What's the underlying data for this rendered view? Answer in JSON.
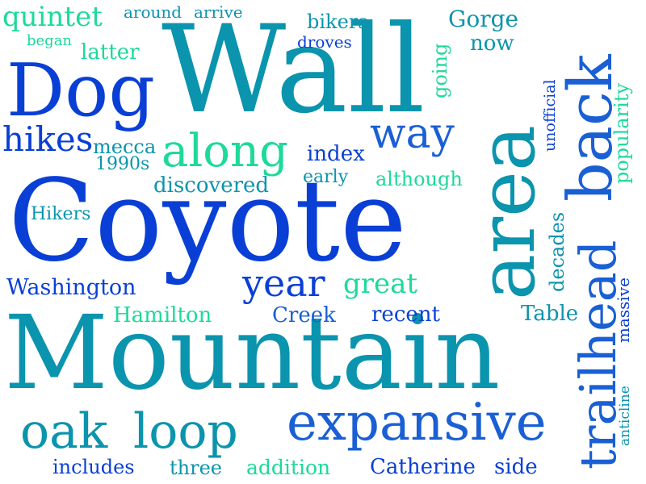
{
  "words": [
    {
      "id": "coyote",
      "text": "Coyote",
      "color": "#0a3fd6"
    },
    {
      "id": "mountain",
      "text": "Mountain",
      "color": "#0b94ad"
    },
    {
      "id": "wall",
      "text": "Wall",
      "color": "#0b94ad"
    },
    {
      "id": "area",
      "text": "area",
      "color": "#0b94ad"
    },
    {
      "id": "dog",
      "text": "Dog",
      "color": "#0a3fd6"
    },
    {
      "id": "back",
      "text": "back",
      "color": "#1a5fd4"
    },
    {
      "id": "trailhead",
      "text": "trailhead",
      "color": "#1a5fd4"
    },
    {
      "id": "expansive",
      "text": "expansive",
      "color": "#1a5fd4"
    },
    {
      "id": "oak",
      "text": "oak",
      "color": "#0b94ad"
    },
    {
      "id": "loop",
      "text": "loop",
      "color": "#0b94ad"
    },
    {
      "id": "along",
      "text": "along",
      "color": "#1ed99a"
    },
    {
      "id": "way",
      "text": "way",
      "color": "#1a5fd4"
    },
    {
      "id": "year",
      "text": "year",
      "color": "#0a3fd6"
    },
    {
      "id": "great",
      "text": "great",
      "color": "#1ed99a"
    },
    {
      "id": "hikes",
      "text": "hikes",
      "color": "#0a3fd6"
    },
    {
      "id": "quintet",
      "text": "quintet",
      "color": "#1ed99a"
    },
    {
      "id": "around",
      "text": "around",
      "color": "#0b94ad"
    },
    {
      "id": "arrive",
      "text": "arrive",
      "color": "#0b94ad"
    },
    {
      "id": "bikers",
      "text": "bikers",
      "color": "#0b94ad"
    },
    {
      "id": "gorge",
      "text": "Gorge",
      "color": "#0b94ad"
    },
    {
      "id": "droves",
      "text": "droves",
      "color": "#0a3fd6"
    },
    {
      "id": "now",
      "text": "now",
      "color": "#0b94ad"
    },
    {
      "id": "began",
      "text": "began",
      "color": "#1ed99a"
    },
    {
      "id": "latter",
      "text": "latter",
      "color": "#1ed99a"
    },
    {
      "id": "going",
      "text": "going",
      "color": "#1ed99a"
    },
    {
      "id": "popularity",
      "text": "popularity",
      "color": "#1ed99a"
    },
    {
      "id": "unofficial",
      "text": "unofficial",
      "color": "#0a3fd6"
    },
    {
      "id": "mecca",
      "text": "mecca",
      "color": "#0b94ad"
    },
    {
      "id": "1990s",
      "text": "1990s",
      "color": "#0b94ad"
    },
    {
      "id": "index",
      "text": "index",
      "color": "#0a3fd6"
    },
    {
      "id": "early",
      "text": "early",
      "color": "#0b94ad"
    },
    {
      "id": "discovered",
      "text": "discovered",
      "color": "#0b94ad"
    },
    {
      "id": "although",
      "text": "although",
      "color": "#1ed99a"
    },
    {
      "id": "hikers",
      "text": "Hikers",
      "color": "#0b94ad"
    },
    {
      "id": "washington",
      "text": "Washington",
      "color": "#0a3fd6"
    },
    {
      "id": "hamilton",
      "text": "Hamilton",
      "color": "#1ed99a"
    },
    {
      "id": "creek",
      "text": "Creek",
      "color": "#1a5fd4"
    },
    {
      "id": "recent",
      "text": "recent",
      "color": "#0a3fd6"
    },
    {
      "id": "table",
      "text": "Table",
      "color": "#0b94ad"
    },
    {
      "id": "decades",
      "text": "decades",
      "color": "#0b94ad"
    },
    {
      "id": "massive",
      "text": "massive",
      "color": "#0a3fd6"
    },
    {
      "id": "anticline",
      "text": "anticline",
      "color": "#0b94ad"
    },
    {
      "id": "includes",
      "text": "includes",
      "color": "#0a3fd6"
    },
    {
      "id": "three",
      "text": "three",
      "color": "#0b94ad"
    },
    {
      "id": "addition",
      "text": "addition",
      "color": "#1ed99a"
    },
    {
      "id": "catherine",
      "text": "Catherine",
      "color": "#0a3fd6"
    },
    {
      "id": "side",
      "text": "side",
      "color": "#0a3fd6"
    }
  ]
}
